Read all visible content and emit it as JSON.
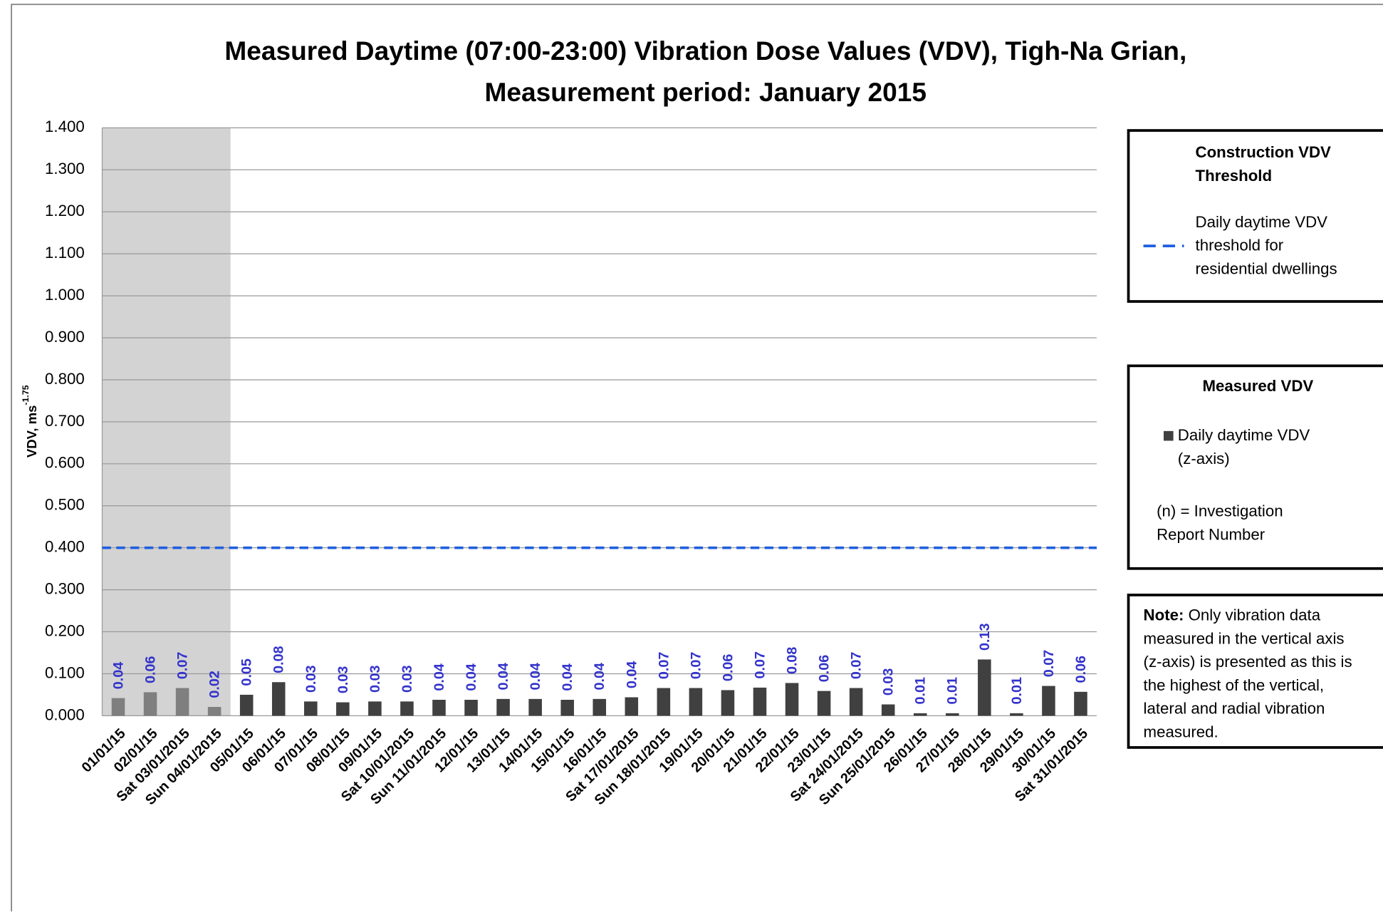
{
  "chart_data": {
    "type": "bar",
    "title": [
      "Measured Daytime (07:00-23:00) Vibration Dose Values (VDV), Tigh-Na Grian,",
      "Measurement period: January 2015"
    ],
    "y_label": "VDV, ms",
    "y_label_sup": "-1.75",
    "categories": [
      "01/01/15",
      "02/01/15",
      "Sat 03/01/2015",
      "Sun 04/01/2015",
      "05/01/15",
      "06/01/15",
      "07/01/15",
      "08/01/15",
      "09/01/15",
      "Sat 10/01/2015",
      "Sun 11/01/2015",
      "12/01/15",
      "13/01/15",
      "14/01/15",
      "15/01/15",
      "16/01/15",
      "Sat 17/01/2015",
      "Sun 18/01/2015",
      "19/01/15",
      "20/01/15",
      "21/01/15",
      "22/01/15",
      "23/01/15",
      "Sat 24/01/2015",
      "Sun 25/01/2015",
      "26/01/15",
      "27/01/15",
      "28/01/15",
      "29/01/15",
      "30/01/15",
      "Sat 31/01/2015"
    ],
    "series": [
      {
        "name": "Daily daytime VDV (z-axis)",
        "color": "#404040",
        "values": [
          0.042,
          0.056,
          0.066,
          0.021,
          0.05,
          0.08,
          0.034,
          0.032,
          0.034,
          0.034,
          0.038,
          0.038,
          0.04,
          0.04,
          0.038,
          0.04,
          0.044,
          0.066,
          0.066,
          0.061,
          0.067,
          0.078,
          0.059,
          0.066,
          0.027,
          0.006,
          0.006,
          0.134,
          0.006,
          0.071,
          0.057
        ],
        "value_labels": [
          "0.04",
          "0.06",
          "0.07",
          "0.02",
          "0.05",
          "0.08",
          "0.03",
          "0.03",
          "0.03",
          "0.03",
          "0.04",
          "0.04",
          "0.04",
          "0.04",
          "0.04",
          "0.04",
          "0.04",
          "0.07",
          "0.07",
          "0.06",
          "0.07",
          "0.08",
          "0.06",
          "0.07",
          "0.03",
          "0.01",
          "0.01",
          "0.13",
          "0.01",
          "0.07",
          "0.06"
        ],
        "value_label_color": "#3333cc"
      }
    ],
    "threshold": {
      "name": "Daily daytime VDV threshold for residential dwellings",
      "value": 0.4,
      "color": "#1f5fe0"
    },
    "highlight": {
      "first": 0,
      "last": 3,
      "band_color": "#d3d3d3",
      "bar_color": "#7f7f7f"
    },
    "ylim": [
      0,
      1.4
    ],
    "yticks": [
      {
        "value": 0,
        "label": "0.000"
      },
      {
        "value": 0.1,
        "label": "0.100"
      },
      {
        "value": 0.2,
        "label": "0.200"
      },
      {
        "value": 0.3,
        "label": "0.300"
      },
      {
        "value": 0.4,
        "label": "0.400"
      },
      {
        "value": 0.5,
        "label": "0.500"
      },
      {
        "value": 0.6,
        "label": "0.600"
      },
      {
        "value": 0.7,
        "label": "0.700"
      },
      {
        "value": 0.8,
        "label": "0.800"
      },
      {
        "value": 0.9,
        "label": "0.900"
      },
      {
        "value": 1.0,
        "label": "1.000"
      },
      {
        "value": 1.1,
        "label": "1.100"
      },
      {
        "value": 1.2,
        "label": "1.200"
      },
      {
        "value": 1.3,
        "label": "1.300"
      },
      {
        "value": 1.4,
        "label": "1.400"
      }
    ],
    "grid": true,
    "legend": [
      {
        "title": [
          "Construction VDV",
          "Threshold"
        ],
        "entry": [
          "Daily daytime VDV",
          "threshold for",
          "residential dwellings"
        ]
      },
      {
        "title": [
          "Measured VDV"
        ],
        "entry": [
          "Daily daytime VDV",
          "(z-axis)"
        ],
        "extra": [
          "(n) = Investigation",
          "Report Number"
        ]
      }
    ],
    "note": {
      "label": "Note:",
      "lines": [
        "Only vibration data",
        "measured in the vertical axis",
        "(z-axis) is presented as this is",
        "the highest of the vertical,",
        "lateral and radial vibration",
        "measured."
      ]
    }
  }
}
